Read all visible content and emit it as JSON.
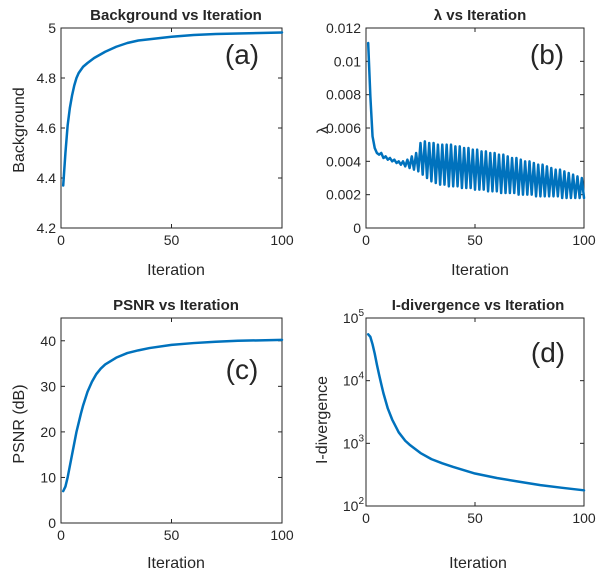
{
  "colors": {
    "series": "#0072BD",
    "axis": "#262626"
  },
  "chart_data": [
    {
      "type": "line",
      "title": "Background vs Iteration",
      "panel_label": "(a)",
      "xlabel": "Iteration",
      "ylabel": "Background",
      "xlim": [
        0,
        100
      ],
      "ylim": [
        4.2,
        5
      ],
      "yscale": "linear",
      "xticks": [
        0,
        50,
        100
      ],
      "xtick_labels": [
        "0",
        "50",
        "100"
      ],
      "yticks": [
        4.2,
        4.4,
        4.6,
        4.8,
        5
      ],
      "ytick_labels": [
        "4.2",
        "4.4",
        "4.6",
        "4.8",
        "5"
      ],
      "grid": false,
      "series": [
        {
          "x": [
            1,
            2,
            3,
            4,
            5,
            6,
            7,
            8,
            10,
            12,
            15,
            18,
            20,
            25,
            30,
            35,
            40,
            50,
            60,
            70,
            80,
            90,
            100
          ],
          "y": [
            4.37,
            4.5,
            4.61,
            4.68,
            4.73,
            4.77,
            4.8,
            4.82,
            4.845,
            4.86,
            4.88,
            4.895,
            4.905,
            4.925,
            4.94,
            4.95,
            4.955,
            4.965,
            4.972,
            4.976,
            4.978,
            4.98,
            4.982
          ]
        }
      ]
    },
    {
      "type": "line",
      "title": "λ vs Iteration",
      "panel_label": "(b)",
      "xlabel": "Iteration",
      "ylabel": "λ",
      "xlim": [
        0,
        100
      ],
      "ylim": [
        0,
        0.012
      ],
      "yscale": "linear",
      "xticks": [
        0,
        50,
        100
      ],
      "xtick_labels": [
        "0",
        "50",
        "100"
      ],
      "yticks": [
        0,
        0.002,
        0.004,
        0.006,
        0.008,
        0.01,
        0.012
      ],
      "ytick_labels": [
        "0",
        "0.002",
        "0.004",
        "0.006",
        "0.008",
        "0.01",
        "0.012"
      ],
      "grid": false,
      "series": [
        {
          "x": [
            1,
            2,
            3,
            4,
            5,
            6,
            7,
            8,
            9,
            10,
            11,
            12,
            13,
            14,
            15,
            16,
            17,
            18,
            19,
            20,
            21,
            22,
            23,
            24,
            25,
            26,
            27,
            28,
            29,
            30,
            31,
            32,
            33,
            34,
            35,
            36,
            37,
            38,
            39,
            40,
            41,
            42,
            43,
            44,
            45,
            46,
            47,
            48,
            49,
            50,
            51,
            52,
            53,
            54,
            55,
            56,
            57,
            58,
            59,
            60,
            61,
            62,
            63,
            64,
            65,
            66,
            67,
            68,
            69,
            70,
            71,
            72,
            73,
            74,
            75,
            76,
            77,
            78,
            79,
            80,
            81,
            82,
            83,
            84,
            85,
            86,
            87,
            88,
            89,
            90,
            91,
            92,
            93,
            94,
            95,
            96,
            97,
            98,
            99,
            100
          ],
          "y": [
            0.0111,
            0.0079,
            0.0055,
            0.0048,
            0.0045,
            0.0044,
            0.0045,
            0.0042,
            0.0043,
            0.0041,
            0.0042,
            0.004,
            0.0041,
            0.0039,
            0.004,
            0.0038,
            0.004,
            0.0037,
            0.0041,
            0.0036,
            0.0043,
            0.0035,
            0.0045,
            0.0034,
            0.0051,
            0.0032,
            0.0052,
            0.003,
            0.0051,
            0.0028,
            0.0051,
            0.0027,
            0.005,
            0.0026,
            0.005,
            0.0026,
            0.005,
            0.0025,
            0.005,
            0.0025,
            0.0049,
            0.0025,
            0.0049,
            0.0024,
            0.0048,
            0.0024,
            0.0048,
            0.0024,
            0.0047,
            0.0023,
            0.0047,
            0.0023,
            0.0046,
            0.0023,
            0.0046,
            0.0022,
            0.0045,
            0.0022,
            0.0045,
            0.0022,
            0.0044,
            0.0021,
            0.0044,
            0.0021,
            0.0043,
            0.0021,
            0.0042,
            0.0021,
            0.0042,
            0.002,
            0.0041,
            0.002,
            0.004,
            0.002,
            0.004,
            0.002,
            0.0039,
            0.0019,
            0.0038,
            0.0019,
            0.0038,
            0.0019,
            0.0037,
            0.0019,
            0.0036,
            0.0019,
            0.0035,
            0.0019,
            0.0035,
            0.0018,
            0.0034,
            0.0018,
            0.0033,
            0.0018,
            0.0032,
            0.0018,
            0.0031,
            0.0018,
            0.003,
            0.0018
          ]
        }
      ]
    },
    {
      "type": "line",
      "title": "PSNR vs Iteration",
      "panel_label": "(c)",
      "xlabel": "Iteration",
      "ylabel": "PSNR (dB)",
      "xlim": [
        0,
        100
      ],
      "ylim": [
        0,
        45
      ],
      "yscale": "linear",
      "xticks": [
        0,
        50,
        100
      ],
      "xtick_labels": [
        "0",
        "50",
        "100"
      ],
      "yticks": [
        0,
        10,
        20,
        30,
        40
      ],
      "ytick_labels": [
        "0",
        "10",
        "20",
        "30",
        "40"
      ],
      "grid": false,
      "series": [
        {
          "x": [
            1,
            2,
            3,
            4,
            5,
            6,
            7,
            8,
            9,
            10,
            12,
            14,
            16,
            18,
            20,
            25,
            30,
            35,
            40,
            50,
            60,
            70,
            80,
            90,
            100
          ],
          "y": [
            7,
            8,
            10,
            12.5,
            15,
            17.5,
            20,
            22,
            24,
            25.8,
            28.8,
            31,
            32.7,
            33.9,
            34.8,
            36.3,
            37.3,
            37.9,
            38.4,
            39.1,
            39.5,
            39.8,
            40,
            40.1,
            40.2
          ]
        }
      ]
    },
    {
      "type": "line",
      "title": "I-divergence vs Iteration",
      "panel_label": "(d)",
      "xlabel": "Iteration",
      "ylabel": "I-divergence",
      "xlim": [
        0,
        100
      ],
      "ylim": [
        100,
        100000
      ],
      "yscale": "log",
      "xticks": [
        0,
        50,
        100
      ],
      "xtick_labels": [
        "0",
        "50",
        "100"
      ],
      "yticks": [
        100,
        1000,
        10000,
        100000
      ],
      "ytick_labels": [
        [
          "10",
          "2"
        ],
        [
          "10",
          "3"
        ],
        [
          "10",
          "4"
        ],
        [
          "10",
          "5"
        ]
      ],
      "grid": false,
      "series": [
        {
          "x": [
            1,
            2,
            3,
            4,
            5,
            6,
            7,
            8,
            10,
            12,
            15,
            18,
            20,
            25,
            30,
            35,
            40,
            50,
            60,
            70,
            80,
            90,
            100
          ],
          "y": [
            55000,
            50000,
            38000,
            27000,
            18000,
            12500,
            8800,
            6300,
            3600,
            2400,
            1500,
            1100,
            950,
            700,
            560,
            480,
            420,
            330,
            280,
            245,
            215,
            195,
            178
          ]
        }
      ]
    }
  ]
}
